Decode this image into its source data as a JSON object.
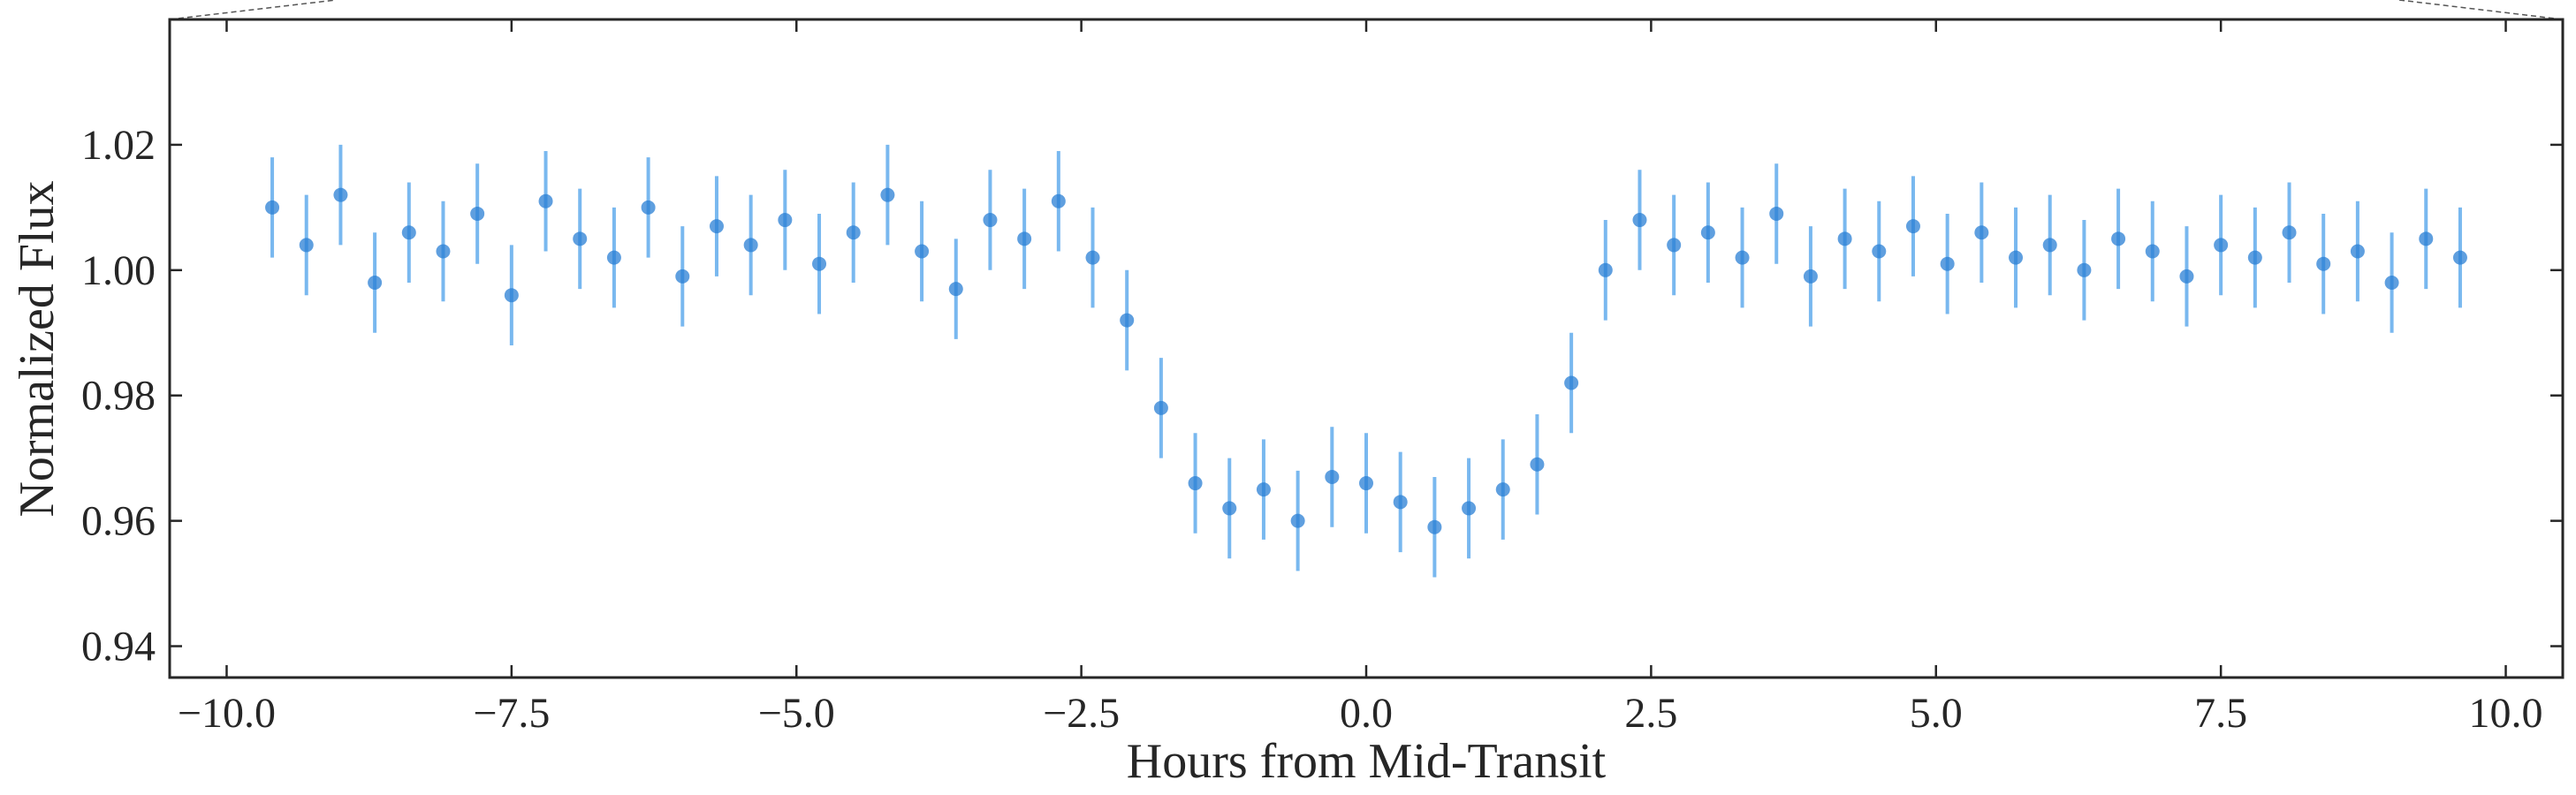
{
  "chart_data": {
    "type": "scatter",
    "title": "",
    "xlabel": "Hours from Mid-Transit",
    "ylabel": "Normalized Flux",
    "xlim": [
      -10.5,
      10.5
    ],
    "ylim": [
      0.935,
      1.04
    ],
    "xticks": [
      -10.0,
      -7.5,
      -5.0,
      -2.5,
      0.0,
      2.5,
      5.0,
      7.5,
      10.0
    ],
    "xtick_labels": [
      "−10.0",
      "−7.5",
      "−5.0",
      "−2.5",
      "0.0",
      "2.5",
      "5.0",
      "7.5",
      "10.0"
    ],
    "yticks": [
      0.94,
      0.96,
      0.98,
      1.0,
      1.02
    ],
    "ytick_labels": [
      "0.94",
      "0.96",
      "0.98",
      "1.00",
      "1.02"
    ],
    "grid": false,
    "legend": "none",
    "point_color": "#2a7fd4",
    "errorbar_color": "#79b8ef",
    "series": [
      {
        "x": [
          -9.6,
          -9.3,
          -9.0,
          -8.7,
          -8.4,
          -8.1,
          -7.8,
          -7.5,
          -7.2,
          -6.9,
          -6.6,
          -6.3,
          -6.0,
          -5.7,
          -5.4,
          -5.1,
          -4.8,
          -4.5,
          -4.2,
          -3.9,
          -3.6,
          -3.3,
          -3.0,
          -2.7,
          -2.4,
          -2.1,
          -1.8,
          -1.5,
          -1.2,
          -0.9,
          -0.6,
          -0.3,
          0.0,
          0.3,
          0.6,
          0.9,
          1.2,
          1.5,
          1.8,
          2.1,
          2.4,
          2.7,
          3.0,
          3.3,
          3.6,
          3.9,
          4.2,
          4.5,
          4.8,
          5.1,
          5.4,
          5.7,
          6.0,
          6.3,
          6.6,
          6.9,
          7.2,
          7.5,
          7.8,
          8.1,
          8.4,
          8.7,
          9.0,
          9.3,
          9.6
        ],
        "y": [
          1.01,
          1.004,
          1.012,
          0.998,
          1.006,
          1.003,
          1.009,
          0.996,
          1.011,
          1.005,
          1.002,
          1.01,
          0.999,
          1.007,
          1.004,
          1.008,
          1.001,
          1.006,
          1.012,
          1.003,
          0.997,
          1.008,
          1.005,
          1.011,
          1.002,
          0.992,
          0.978,
          0.966,
          0.962,
          0.965,
          0.96,
          0.967,
          0.966,
          0.963,
          0.959,
          0.962,
          0.965,
          0.969,
          0.982,
          1.0,
          1.008,
          1.004,
          1.006,
          1.002,
          1.009,
          0.999,
          1.005,
          1.003,
          1.007,
          1.001,
          1.006,
          1.002,
          1.004,
          1.0,
          1.005,
          1.003,
          0.999,
          1.004,
          1.002,
          1.006,
          1.001,
          1.003,
          0.998,
          1.005,
          1.002
        ],
        "yerr": 0.008
      }
    ]
  }
}
